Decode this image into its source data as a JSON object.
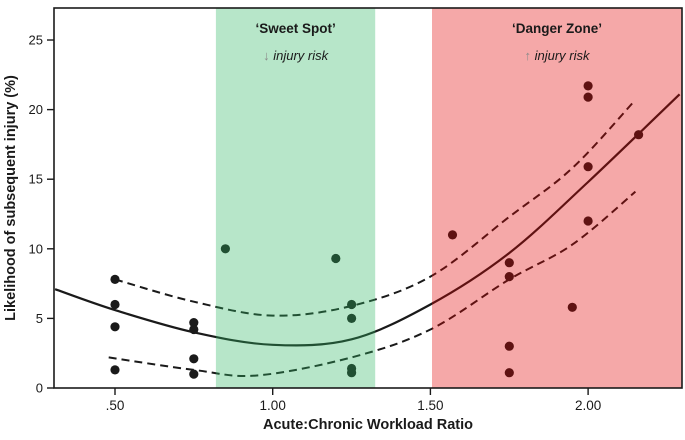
{
  "figure": {
    "description_labels": {
      "x_axis_title": "Acute:Chronic Workload Ratio",
      "y_axis_title": "Likelihood of subsequent injury (%)"
    }
  },
  "chart_data": {
    "type": "scatter",
    "title": "",
    "xlabel": "Acute:Chronic Workload Ratio",
    "ylabel": "Likelihood of subsequent injury (%)",
    "xlim": [
      0.3066,
      2.2977
    ],
    "ylim": [
      0,
      27.3
    ],
    "grid": false,
    "legend": "none",
    "x_ticks": [
      {
        "value": 0.5,
        "label": ".50"
      },
      {
        "value": 1.0,
        "label": "1.00"
      },
      {
        "value": 1.5,
        "label": "1.50"
      },
      {
        "value": 2.0,
        "label": "2.00"
      }
    ],
    "y_ticks": [
      {
        "value": 0,
        "label": "0"
      },
      {
        "value": 5,
        "label": "5"
      },
      {
        "value": 10,
        "label": "10"
      },
      {
        "value": 15,
        "label": "15"
      },
      {
        "value": 20,
        "label": "20"
      },
      {
        "value": 25,
        "label": "25"
      }
    ],
    "zones": [
      {
        "id": "sweet-spot",
        "label": "‘Sweet Spot’",
        "arrow": "↓",
        "sublabel": "injury risk",
        "x0": 0.82,
        "x1": 1.325,
        "overlay_color": "rgba(49,183,100,0.35)"
      },
      {
        "id": "danger-zone",
        "label": "‘Danger Zone’",
        "arrow": "↑",
        "sublabel": "injury risk",
        "x0": 1.505,
        "x1": 2.2977,
        "overlay_color": "rgba(226,7,7,0.35)"
      }
    ],
    "series": [
      {
        "name": "observed-injury-likelihood",
        "kind": "scatter",
        "points": [
          [
            0.5,
            7.8
          ],
          [
            0.5,
            6.0
          ],
          [
            0.5,
            4.4
          ],
          [
            0.5,
            1.3
          ],
          [
            0.75,
            4.7
          ],
          [
            0.75,
            4.2
          ],
          [
            0.75,
            2.1
          ],
          [
            0.75,
            1.0
          ],
          [
            0.85,
            10.0
          ],
          [
            1.2,
            9.3
          ],
          [
            1.25,
            6.0
          ],
          [
            1.25,
            5.0
          ],
          [
            1.25,
            1.4
          ],
          [
            1.25,
            1.1
          ],
          [
            1.57,
            11.0
          ],
          [
            1.75,
            9.0
          ],
          [
            1.75,
            8.0
          ],
          [
            1.75,
            3.0
          ],
          [
            1.75,
            1.1
          ],
          [
            1.95,
            5.8
          ],
          [
            2.0,
            21.7
          ],
          [
            2.0,
            20.9
          ],
          [
            2.0,
            15.9
          ],
          [
            2.0,
            12.0
          ],
          [
            2.16,
            18.2
          ]
        ]
      },
      {
        "name": "model-fit",
        "kind": "line",
        "style": "solid",
        "points": [
          [
            0.31,
            7.1
          ],
          [
            0.5,
            5.6
          ],
          [
            0.75,
            4.0
          ],
          [
            1.0,
            3.1
          ],
          [
            1.25,
            3.5
          ],
          [
            1.5,
            6.0
          ],
          [
            1.75,
            9.7
          ],
          [
            2.0,
            14.8
          ],
          [
            2.29,
            21.1
          ]
        ]
      },
      {
        "name": "upper-confidence-limit",
        "kind": "line",
        "style": "dashed",
        "points": [
          [
            0.5,
            7.8
          ],
          [
            0.75,
            6.2
          ],
          [
            1.0,
            5.2
          ],
          [
            1.25,
            5.9
          ],
          [
            1.5,
            8.0
          ],
          [
            1.75,
            12.3
          ],
          [
            1.95,
            15.8
          ],
          [
            2.15,
            20.7
          ]
        ]
      },
      {
        "name": "lower-confidence-limit",
        "kind": "line",
        "style": "dashed",
        "points": [
          [
            0.48,
            2.2
          ],
          [
            0.75,
            1.3
          ],
          [
            0.95,
            0.9
          ],
          [
            1.25,
            2.2
          ],
          [
            1.5,
            4.2
          ],
          [
            1.75,
            7.8
          ],
          [
            1.95,
            10.3
          ],
          [
            2.15,
            14.1
          ]
        ]
      }
    ],
    "colors": {
      "ink": "#1a1a1a",
      "sweet_spot_overlay": "rgba(49,183,100,0.35)",
      "danger_zone_overlay": "rgba(226,7,7,0.35)",
      "arrow_gray": "#8a8a8a",
      "background": "#ffffff"
    }
  }
}
